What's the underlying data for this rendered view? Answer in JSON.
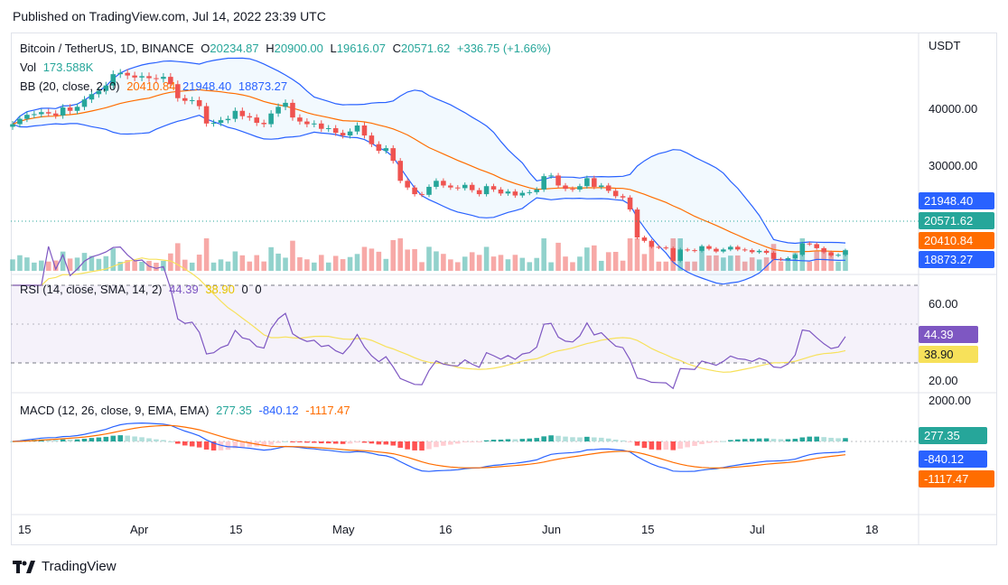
{
  "header": {
    "published": "Published on TradingView.com, Jul 14, 2022 23:39 UTC"
  },
  "footer": {
    "brand": "TradingView"
  },
  "colors": {
    "up": "#26a69a",
    "down": "#ef5350",
    "bb_band": "#2962ff",
    "bb_basis": "#ff6d00",
    "rsi": "#7e57c2",
    "rsi_ma": "#f7e15a",
    "macd": "#2962ff",
    "signal": "#ff6d00"
  },
  "legend": {
    "symbol": "Bitcoin / TetherUS, 1D, BINANCE",
    "o_label": "O",
    "o": "20234.87",
    "h_label": "H",
    "h": "20900.00",
    "l_label": "L",
    "l": "19616.07",
    "c_label": "C",
    "c": "20571.62",
    "change": "+336.75 (+1.66%)",
    "vol_label": "Vol",
    "vol": "173.588K",
    "bb_label": "BB (20, close, 2, 0)",
    "bb_basis": "20410.84",
    "bb_upper": "21948.40",
    "bb_lower": "18873.27",
    "rsi_label": "RSI (14, close, SMA, 14, 2)",
    "rsi": "44.39",
    "rsi_ma": "38.90",
    "rsi_z1": "0",
    "rsi_z2": "0",
    "macd_label": "MACD (12, 26, close, 9, EMA, EMA)",
    "macd_hist": "277.35",
    "macd": "-840.12",
    "macd_signal": "-1117.47"
  },
  "price_axis": {
    "currency": "USDT",
    "ticks": [
      "40000.00",
      "30000.00"
    ]
  },
  "price_tags": {
    "upper": "21948.40",
    "close": "20571.62",
    "basis": "20410.84",
    "lower": "18873.27"
  },
  "rsi_axis": {
    "ticks": [
      "60.00",
      "20.00"
    ],
    "tag_rsi": "44.39",
    "tag_ma": "38.90"
  },
  "macd_axis": {
    "ticks": [
      "2000.00"
    ],
    "tag_hist": "277.35",
    "tag_macd": "-840.12",
    "tag_signal": "-1117.47"
  },
  "time_axis": {
    "labels": [
      "15",
      "Apr",
      "15",
      "May",
      "16",
      "Jun",
      "15",
      "Jul",
      "18"
    ]
  },
  "chart_data": [
    {
      "type": "candlestick",
      "title": "Bitcoin / TetherUS, 1D, BINANCE",
      "ylabel": "USDT",
      "ylim": [
        17500,
        50000
      ],
      "last": {
        "open": 20234.87,
        "high": 20900.0,
        "low": 19616.07,
        "close": 20571.62
      },
      "close_series": [
        39500,
        40300,
        40900,
        41000,
        41300,
        41100,
        40800,
        42000,
        41500,
        42100,
        43200,
        44000,
        44500,
        45300,
        47000,
        47200,
        46800,
        46500,
        46700,
        46400,
        46300,
        46600,
        45500,
        43400,
        43000,
        43100,
        42200,
        39600,
        39700,
        40100,
        40300,
        41500,
        40700,
        40500,
        39700,
        39500,
        41100,
        42100,
        42700,
        40500,
        39900,
        39500,
        39600,
        38800,
        38900,
        38200,
        37800,
        38400,
        39300,
        37800,
        36500,
        35500,
        35900,
        34000,
        31000,
        30000,
        29000,
        28900,
        30100,
        31000,
        30300,
        30000,
        29900,
        30400,
        29600,
        29000,
        30200,
        29700,
        29100,
        29400,
        28800,
        29200,
        29300,
        29700,
        31700,
        31800,
        30300,
        29800,
        29700,
        30200,
        31400,
        30100,
        30300,
        29500,
        28700,
        28500,
        26700,
        22500,
        22000,
        21100,
        21000,
        20900,
        19000,
        20700,
        20600,
        20500,
        21200,
        20800,
        20400,
        20700,
        21100,
        20700,
        20600,
        20300,
        20500,
        20200,
        19300,
        19200,
        19400,
        19900,
        21600,
        21500,
        20900,
        20300,
        19800,
        19900,
        20571.62
      ]
    },
    {
      "type": "bar",
      "title": "Vol",
      "unit": "BTC",
      "last_value": 173588
    },
    {
      "type": "line",
      "title": "BB (20, close, 2, 0)",
      "series": [
        {
          "name": "Basis",
          "last_value": 20410.84
        },
        {
          "name": "Upper",
          "last_value": 21948.4
        },
        {
          "name": "Lower",
          "last_value": 18873.27
        }
      ]
    },
    {
      "type": "line",
      "title": "RSI (14, close, SMA, 14, 2)",
      "ylim": [
        20,
        60
      ],
      "levels": [
        70,
        50,
        30
      ],
      "series": [
        {
          "name": "RSI",
          "last_value": 44.39
        },
        {
          "name": "RSI-based MA",
          "last_value": 38.9
        }
      ]
    },
    {
      "type": "line",
      "title": "MACD (12, 26, close, 9, EMA, EMA)",
      "series": [
        {
          "name": "Histogram",
          "last_value": 277.35
        },
        {
          "name": "MACD",
          "last_value": -840.12
        },
        {
          "name": "Signal",
          "last_value": -1117.47
        }
      ]
    }
  ]
}
